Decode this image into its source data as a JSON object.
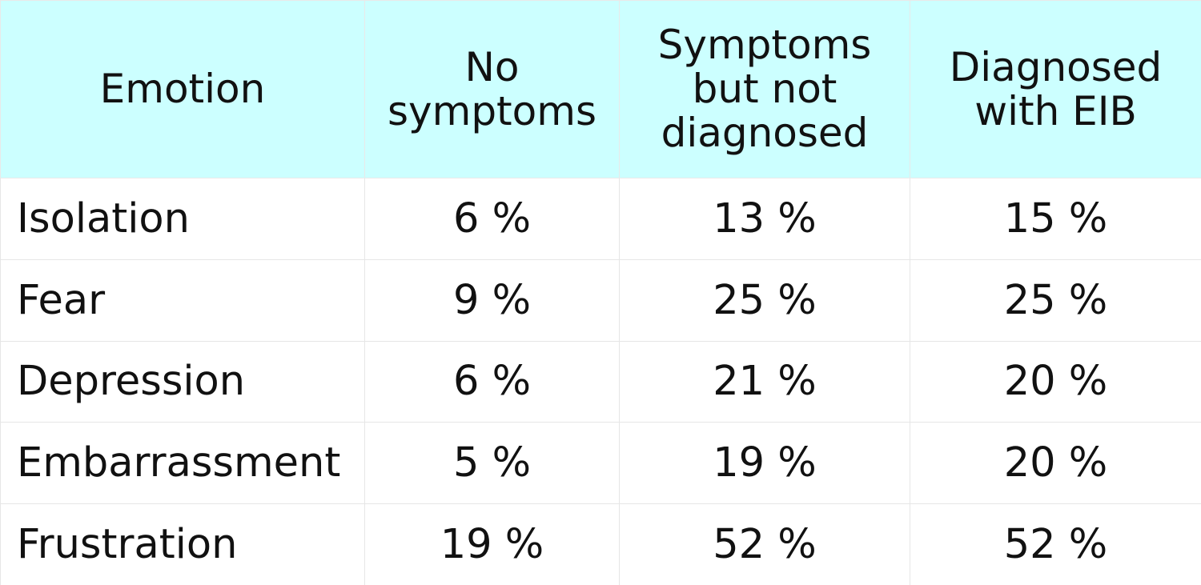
{
  "chart_data": {
    "type": "table",
    "columns": [
      "Emotion",
      "No\nsymptoms",
      "Symptoms\nbut not\ndiagnosed",
      "Diagnosed\nwith EIB"
    ],
    "rows": [
      [
        "Isolation",
        "6 %",
        "13 %",
        "15 %"
      ],
      [
        "Fear",
        "9 %",
        "25 %",
        "25 %"
      ],
      [
        "Depression",
        "6 %",
        "21 %",
        "20 %"
      ],
      [
        "Embarrassment",
        "5 %",
        "19 %",
        "20 %"
      ],
      [
        "Frustration",
        "19 %",
        "52 %",
        "52 %"
      ]
    ]
  },
  "colors": {
    "header_background": "#ccffff",
    "grid_line": "#e6e6e6"
  }
}
